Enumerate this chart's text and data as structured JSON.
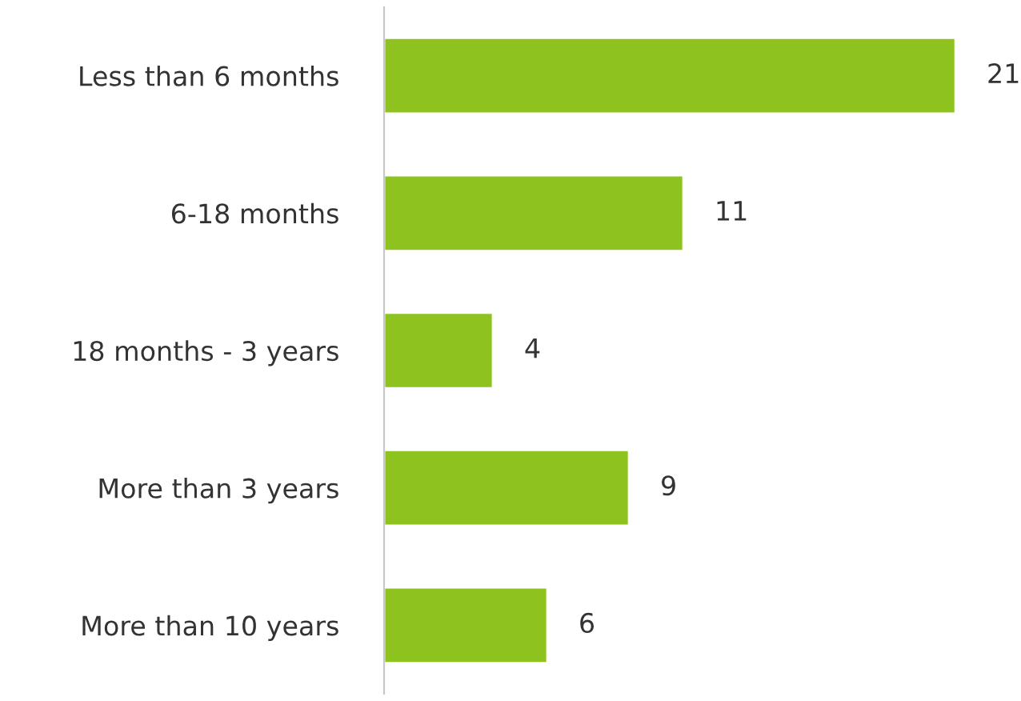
{
  "chart_data": {
    "type": "bar",
    "orientation": "horizontal",
    "categories": [
      "Less than 6 months",
      "6-18 months",
      "18 months - 3 years",
      "More than 3 years",
      "More than 10 years"
    ],
    "values": [
      21,
      11,
      4,
      9,
      6
    ],
    "color": "#8dc21f",
    "data_labels": true,
    "tick_labels": "y",
    "grid": false,
    "legend": false
  }
}
